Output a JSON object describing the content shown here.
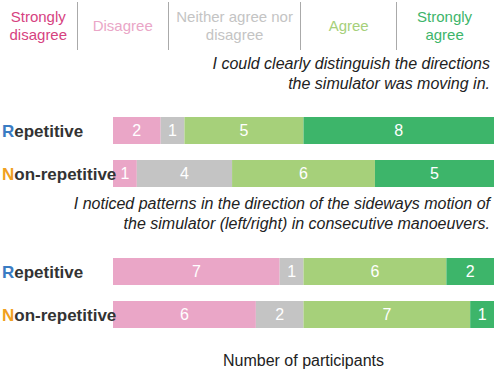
{
  "chart_data": [
    {
      "type": "bar",
      "title": "I could clearly distinguish the directions the simulator was moving in.",
      "orientation": "horizontal",
      "stacked": true,
      "data_labels": true,
      "tick_labels": "y",
      "legend": "top",
      "categories": [
        "Repetitive",
        "Non-repetitive"
      ],
      "xlim": [
        0,
        16
      ],
      "series": [
        {
          "name": "Strongly disagree",
          "color": "#d6427f",
          "values": [
            0,
            0
          ]
        },
        {
          "name": "Disagree",
          "color": "#eaa6c7",
          "values": [
            2,
            1
          ]
        },
        {
          "name": "Neither agree nor disagree",
          "color": "#c4c4c4",
          "values": [
            1,
            4
          ]
        },
        {
          "name": "Agree",
          "color": "#a6d07a",
          "values": [
            5,
            6
          ]
        },
        {
          "name": "Strongly agree",
          "color": "#3db56a",
          "values": [
            8,
            5
          ]
        }
      ]
    },
    {
      "type": "bar",
      "title": "I noticed patterns in the direction of the sideways motion of the simulator (left/right) in consecutive manoeuvers.",
      "orientation": "horizontal",
      "stacked": true,
      "data_labels": true,
      "tick_labels": "y",
      "x_label": "Number of participants",
      "categories": [
        "Repetitive",
        "Non-repetitive"
      ],
      "xlim": [
        0,
        16
      ],
      "series": [
        {
          "name": "Strongly disagree",
          "color": "#d6427f",
          "values": [
            0,
            0
          ]
        },
        {
          "name": "Disagree",
          "color": "#eaa6c7",
          "values": [
            7,
            6
          ]
        },
        {
          "name": "Neither agree nor disagree",
          "color": "#c4c4c4",
          "values": [
            1,
            2
          ]
        },
        {
          "name": "Agree",
          "color": "#a6d07a",
          "values": [
            6,
            7
          ]
        },
        {
          "name": "Strongly agree",
          "color": "#3db56a",
          "values": [
            2,
            1
          ]
        }
      ]
    }
  ]
}
